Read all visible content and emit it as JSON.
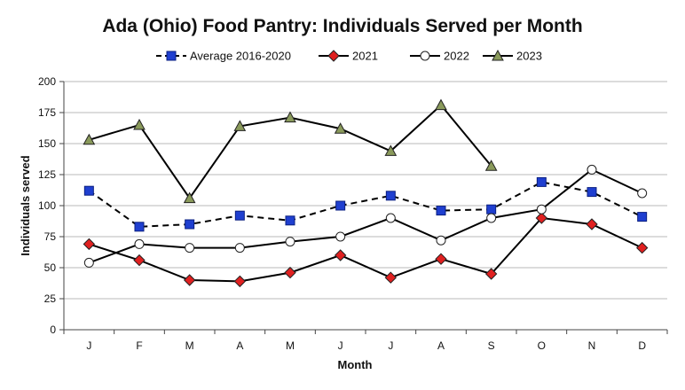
{
  "chart_data": {
    "type": "line",
    "title": "Ada (Ohio) Food Pantry: Individuals Served per Month",
    "xlabel": "Month",
    "ylabel": "Individuals  served",
    "categories": [
      "J",
      "F",
      "M",
      "A",
      "M",
      "J",
      "J",
      "A",
      "S",
      "O",
      "N",
      "D"
    ],
    "ylim": [
      0,
      200
    ],
    "yticks": [
      0,
      25,
      50,
      75,
      100,
      125,
      150,
      175,
      200
    ],
    "grid": "horizontal",
    "legend_position": "top",
    "series": [
      {
        "name": "Average 2016-2020",
        "color": "#1f3fd0",
        "marker": "square",
        "dashed": true,
        "values": [
          112,
          83,
          85,
          92,
          88,
          100,
          108,
          96,
          97,
          119,
          111,
          91
        ]
      },
      {
        "name": "2021",
        "color": "#e02020",
        "marker": "diamond",
        "dashed": false,
        "values": [
          69,
          56,
          40,
          39,
          46,
          60,
          42,
          57,
          45,
          90,
          85,
          66
        ]
      },
      {
        "name": "2022",
        "color": "#ffffff",
        "marker": "circle",
        "dashed": false,
        "values": [
          54,
          69,
          66,
          66,
          71,
          75,
          90,
          72,
          90,
          97,
          129,
          110
        ]
      },
      {
        "name": "2023",
        "color": "#8a9a5b",
        "marker": "triangle",
        "dashed": false,
        "values": [
          153,
          165,
          106,
          164,
          171,
          162,
          144,
          181,
          132,
          null,
          null,
          null
        ]
      }
    ]
  }
}
